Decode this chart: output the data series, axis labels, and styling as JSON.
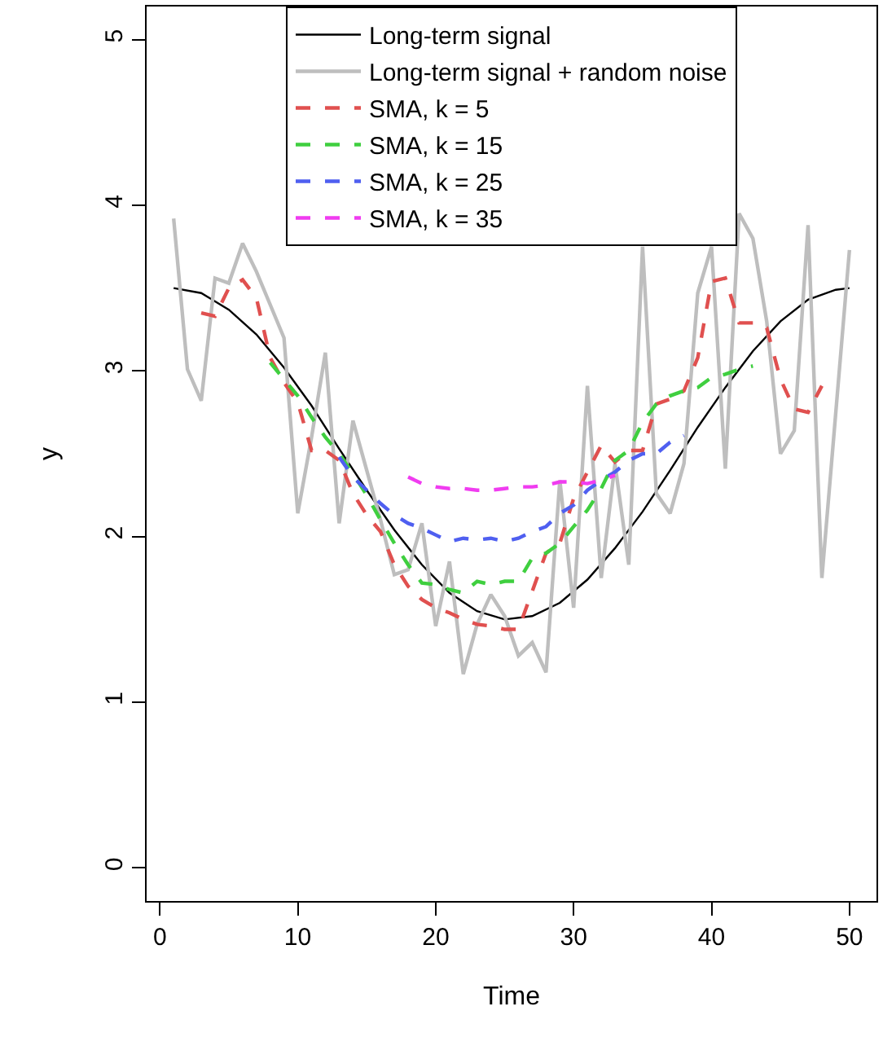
{
  "chart_data": {
    "type": "line",
    "xlabel": "Time",
    "ylabel": "y",
    "xlim": [
      -0.96,
      51.96
    ],
    "ylim": [
      -0.2,
      5.2
    ],
    "xticks": [
      0,
      10,
      20,
      30,
      40,
      50
    ],
    "yticks": [
      0,
      1,
      2,
      3,
      4,
      5
    ],
    "legend": "top",
    "series": [
      {
        "name": "Long-term signal",
        "color": "#000000",
        "line_style": "solid",
        "x": [
          1,
          3,
          5,
          7,
          9,
          11,
          13,
          15,
          17,
          19,
          21,
          23,
          25,
          27,
          29,
          31,
          33,
          35,
          37,
          39,
          41,
          43,
          45,
          47,
          49,
          50
        ],
        "values": [
          3.5,
          3.47,
          3.37,
          3.22,
          3.02,
          2.79,
          2.53,
          2.28,
          2.04,
          1.83,
          1.66,
          1.55,
          1.5,
          1.52,
          1.6,
          1.74,
          1.93,
          2.15,
          2.4,
          2.66,
          2.9,
          3.12,
          3.3,
          3.43,
          3.49,
          3.5
        ]
      },
      {
        "name": "Long-term signal + random noise",
        "color": "#bebebe",
        "line_style": "solid",
        "x": [
          1,
          2,
          3,
          4,
          5,
          6,
          7,
          8,
          9,
          10,
          11,
          12,
          13,
          14,
          15,
          16,
          17,
          18,
          19,
          20,
          21,
          22,
          23,
          24,
          25,
          26,
          27,
          28,
          29,
          30,
          31,
          32,
          33,
          34,
          35,
          36,
          37,
          38,
          39,
          40,
          41,
          42,
          43,
          44,
          45,
          46,
          47,
          48,
          49,
          50
        ],
        "values": [
          3.92,
          3.01,
          2.82,
          3.56,
          3.53,
          3.77,
          3.6,
          3.4,
          3.2,
          2.14,
          2.6,
          3.11,
          2.08,
          2.7,
          2.4,
          2.1,
          1.77,
          1.8,
          2.08,
          1.46,
          1.85,
          1.17,
          1.47,
          1.65,
          1.52,
          1.28,
          1.36,
          1.18,
          2.34,
          1.57,
          2.91,
          1.75,
          2.44,
          1.83,
          3.75,
          2.26,
          2.14,
          2.44,
          3.47,
          3.75,
          2.41,
          3.95,
          3.8,
          3.3,
          2.5,
          2.64,
          3.88,
          1.75,
          2.74,
          3.73
        ]
      },
      {
        "name": "SMA, k = 5",
        "color": "#e0504f",
        "line_style": "dashed",
        "x": [
          3,
          4,
          5,
          6,
          7,
          8,
          9,
          10,
          11,
          12,
          13,
          14,
          15,
          16,
          17,
          18,
          19,
          20,
          21,
          22,
          23,
          24,
          25,
          26,
          27,
          28,
          29,
          30,
          31,
          32,
          33,
          34,
          35,
          36,
          37,
          38,
          39,
          40,
          41,
          42,
          43,
          44,
          45,
          46,
          47,
          48
        ],
        "values": [
          3.35,
          3.33,
          3.5,
          3.55,
          3.44,
          3.08,
          2.93,
          2.81,
          2.52,
          2.52,
          2.46,
          2.26,
          2.13,
          2.03,
          1.83,
          1.7,
          1.62,
          1.57,
          1.54,
          1.5,
          1.47,
          1.46,
          1.44,
          1.44,
          1.67,
          1.9,
          1.96,
          2.23,
          2.39,
          2.55,
          2.45,
          2.52,
          2.52,
          2.8,
          2.83,
          2.88,
          3.08,
          3.54,
          3.56,
          3.29,
          3.29,
          3.26,
          2.95,
          2.77,
          2.75,
          2.91
        ]
      },
      {
        "name": "SMA, k = 15",
        "color": "#3fcf3f",
        "line_style": "dashed",
        "x": [
          8,
          9,
          10,
          11,
          12,
          13,
          14,
          15,
          16,
          17,
          18,
          19,
          20,
          21,
          22,
          23,
          24,
          25,
          26,
          27,
          28,
          29,
          30,
          31,
          32,
          33,
          34,
          35,
          36,
          37,
          38,
          39,
          40,
          41,
          42,
          43
        ],
        "values": [
          3.05,
          2.95,
          2.85,
          2.72,
          2.6,
          2.5,
          2.38,
          2.25,
          2.1,
          1.96,
          1.83,
          1.72,
          1.71,
          1.68,
          1.66,
          1.73,
          1.71,
          1.73,
          1.73,
          1.87,
          1.9,
          1.96,
          2.06,
          2.16,
          2.29,
          2.46,
          2.52,
          2.69,
          2.8,
          2.85,
          2.88,
          2.9,
          2.96,
          2.98,
          3.01,
          3.03
        ]
      },
      {
        "name": "SMA, k = 25",
        "color": "#4f5ff0",
        "line_style": "dashed",
        "x": [
          13,
          14,
          15,
          16,
          17,
          18,
          19,
          20,
          21,
          22,
          23,
          24,
          25,
          26,
          27,
          28,
          29,
          30,
          31,
          32,
          33,
          34,
          35,
          36,
          37,
          38
        ],
        "values": [
          2.48,
          2.36,
          2.28,
          2.2,
          2.13,
          2.08,
          2.05,
          2.01,
          1.97,
          1.99,
          1.98,
          1.99,
          1.97,
          1.99,
          2.03,
          2.06,
          2.14,
          2.19,
          2.28,
          2.34,
          2.39,
          2.46,
          2.5,
          2.5,
          2.57,
          2.61
        ]
      },
      {
        "name": "SMA, k = 35",
        "color": "#f03cf0",
        "line_style": "dashed",
        "x": [
          18,
          19,
          20,
          21,
          22,
          23,
          24,
          25,
          26,
          27,
          28,
          29,
          30,
          31,
          32,
          33
        ],
        "values": [
          2.36,
          2.32,
          2.3,
          2.29,
          2.29,
          2.28,
          2.28,
          2.29,
          2.3,
          2.3,
          2.31,
          2.33,
          2.33,
          2.32,
          2.34,
          2.37
        ]
      }
    ]
  }
}
